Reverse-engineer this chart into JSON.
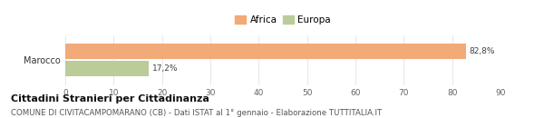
{
  "categories": [
    "Marocco"
  ],
  "series": [
    {
      "label": "Africa",
      "value": 82.8,
      "color": "#F2AA78"
    },
    {
      "label": "Europa",
      "value": 17.2,
      "color": "#BBCC99"
    }
  ],
  "xlim": [
    0,
    90
  ],
  "xticks": [
    0,
    10,
    20,
    30,
    40,
    50,
    60,
    70,
    80,
    90
  ],
  "bar_height": 0.32,
  "title": "Cittadini Stranieri per Cittadinanza",
  "subtitle": "COMUNE DI CIVITACAMPOMARANO (CB) - Dati ISTAT al 1° gennaio - Elaborazione TUTTITALIA.IT",
  "title_fontsize": 8.0,
  "subtitle_fontsize": 6.2,
  "legend_fontsize": 7.5,
  "label_fontsize": 6.5,
  "ytick_fontsize": 7.0,
  "xtick_fontsize": 6.5,
  "background_color": "#ffffff",
  "africa_label": "82,8%",
  "europa_label": "17,2%"
}
